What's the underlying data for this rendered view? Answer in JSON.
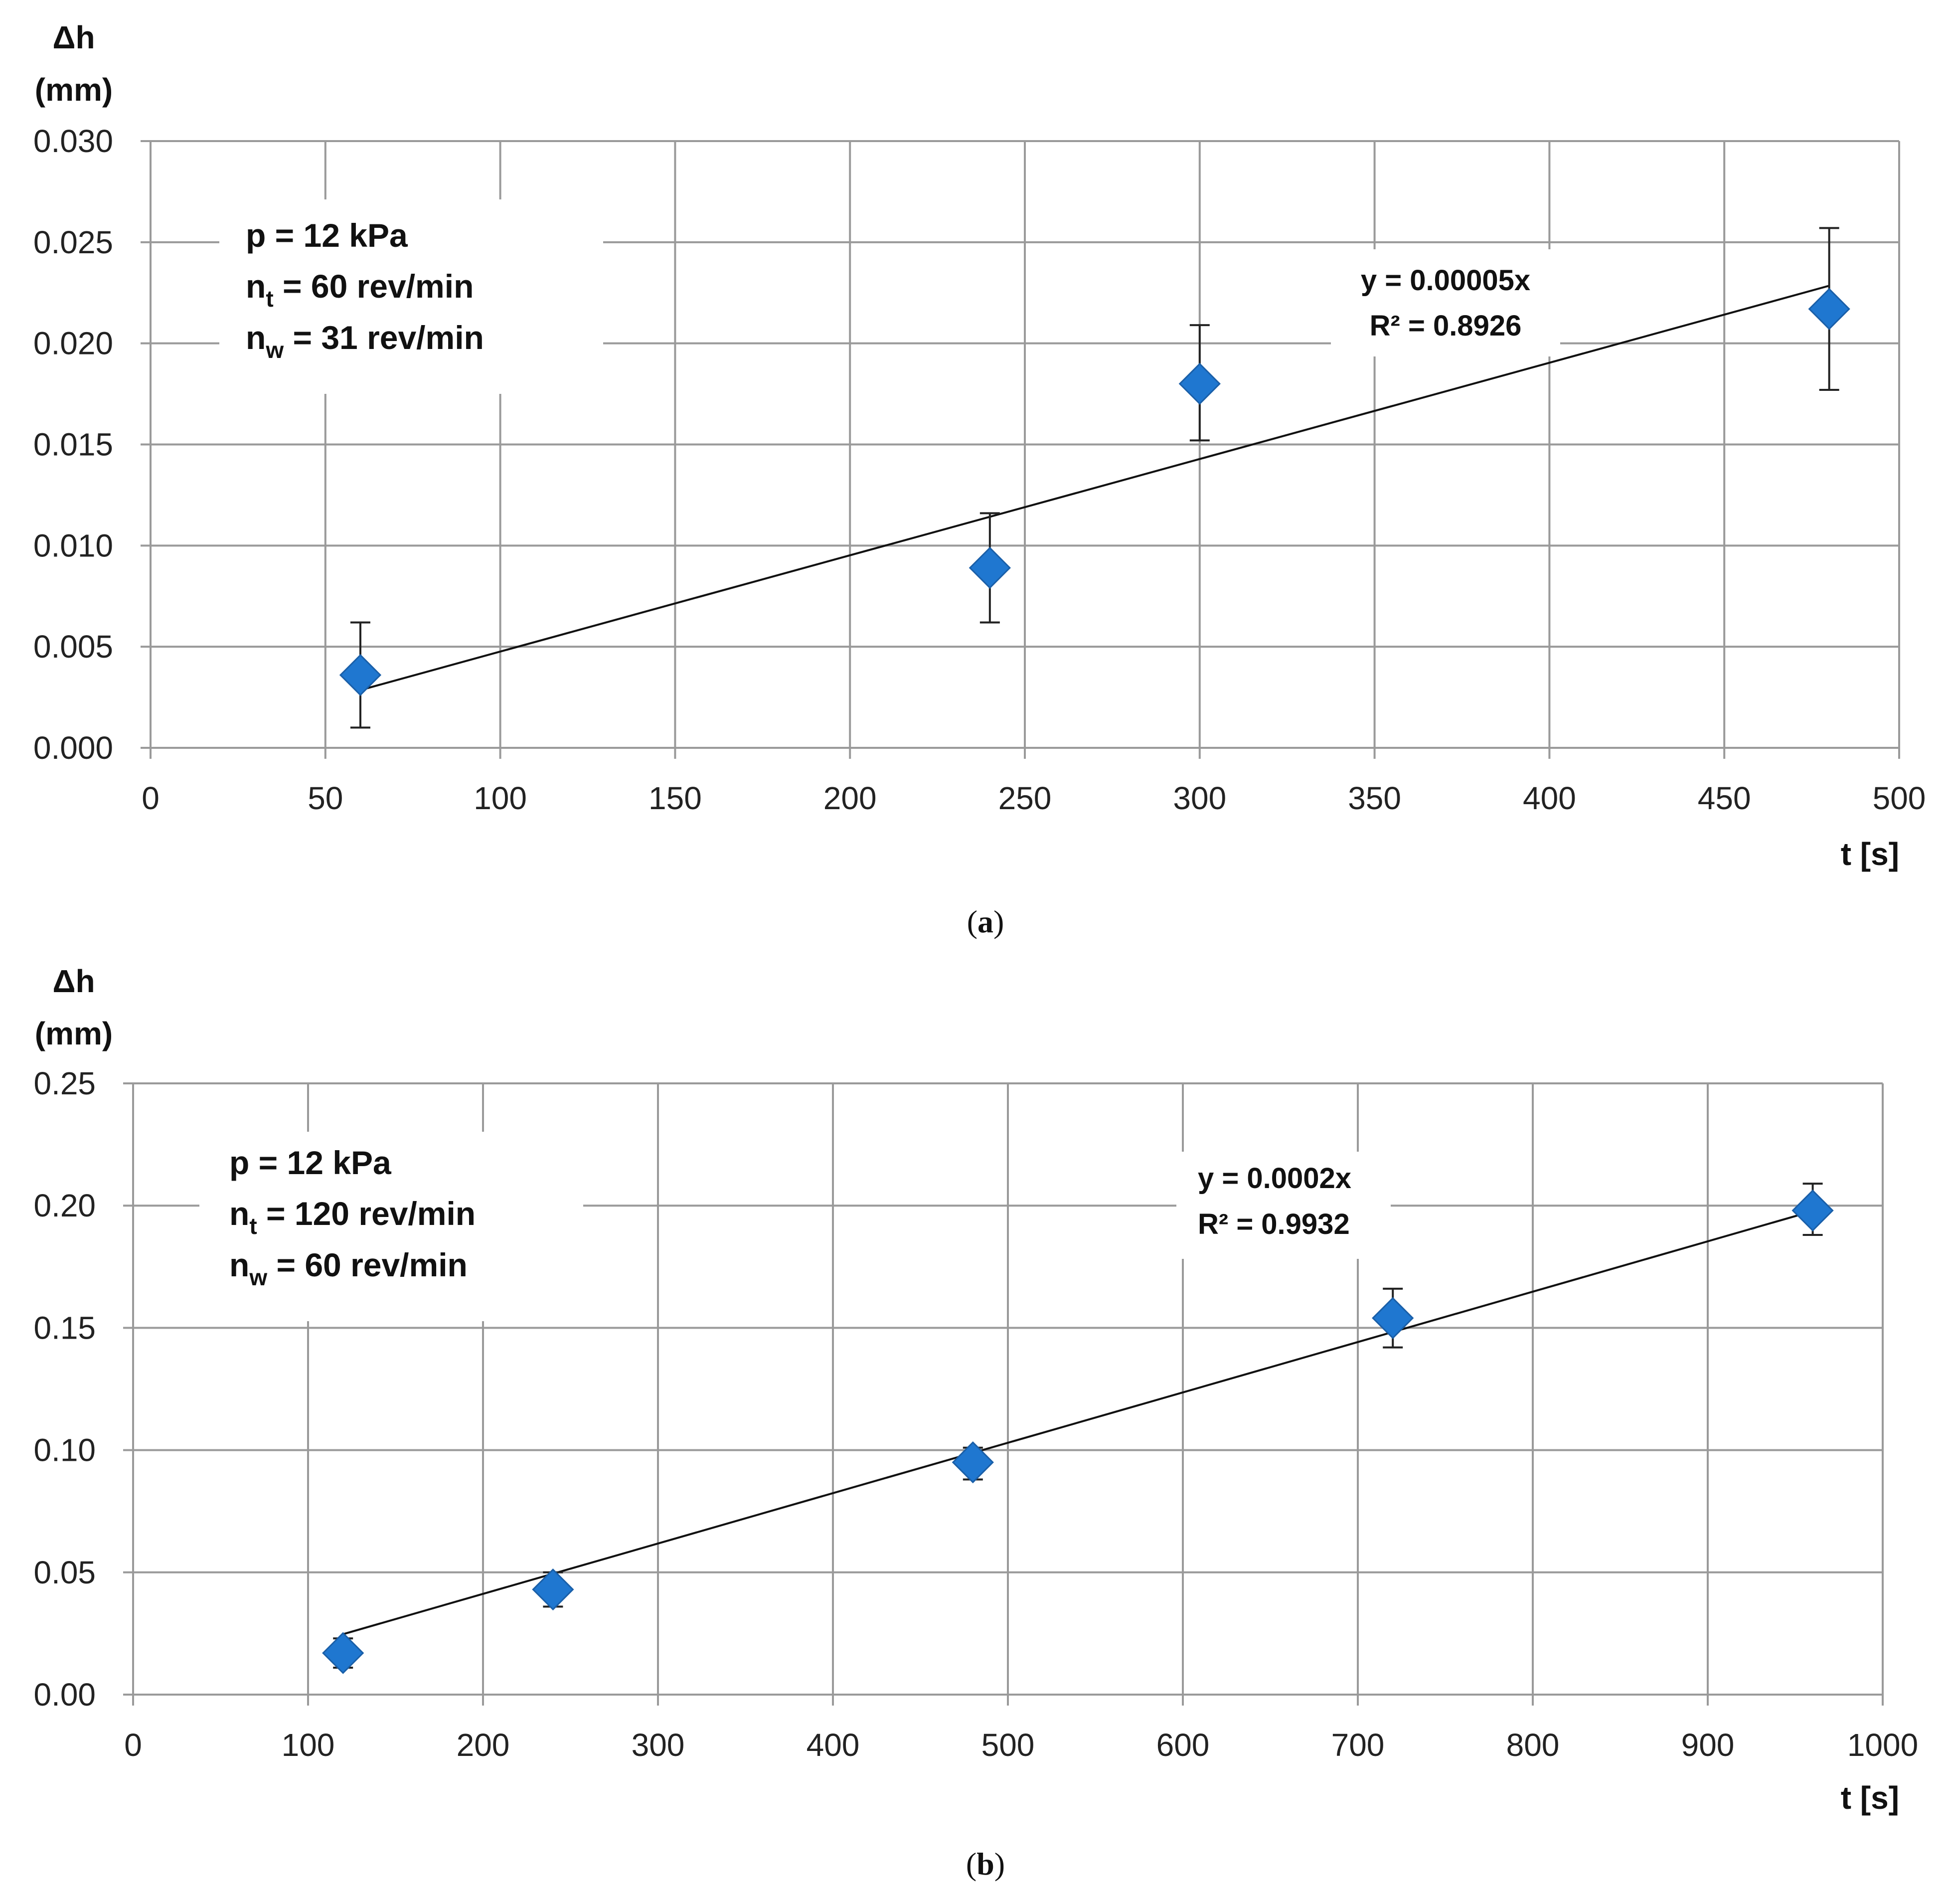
{
  "chart_data": [
    {
      "id": "a",
      "type": "scatter",
      "caption_letter": "a",
      "ylabel_line1": "Δh",
      "ylabel_line2": "(mm)",
      "xlabel": "t [s]",
      "xlim": [
        0,
        500
      ],
      "ylim": [
        0,
        0.03
      ],
      "xticks": [
        "0",
        "50",
        "100",
        "150",
        "200",
        "250",
        "300",
        "350",
        "400",
        "450",
        "500"
      ],
      "yticks": [
        "0.000",
        "0.005",
        "0.010",
        "0.015",
        "0.020",
        "0.025",
        "0.030"
      ],
      "grid": true,
      "annotation": {
        "p": "p = 12 kPa",
        "nt_main": "n",
        "nt_sub": "t",
        "nt_rest": " = 60 rev/min",
        "nw_main": "n",
        "nw_sub": "w",
        "nw_rest": " = 31 rev/min"
      },
      "trendline": {
        "slope": 4.76e-05,
        "x_range": [
          60,
          480
        ],
        "equation": "y = 0.00005x",
        "r2": "R² = 0.8926"
      },
      "series": [
        {
          "name": "Δh",
          "color": "#1f77d0",
          "x": [
            60,
            240,
            300,
            480
          ],
          "y": [
            0.0036,
            0.0089,
            0.018,
            0.0217
          ],
          "err_low": [
            0.001,
            0.0062,
            0.0152,
            0.0177
          ],
          "err_high": [
            0.0062,
            0.0116,
            0.0209,
            0.0257
          ]
        }
      ]
    },
    {
      "id": "b",
      "type": "scatter",
      "caption_letter": "b",
      "ylabel_line1": "Δh",
      "ylabel_line2": "(mm)",
      "xlabel": "t [s]",
      "xlim": [
        0,
        1000
      ],
      "ylim": [
        0,
        0.25
      ],
      "xticks": [
        "0",
        "100",
        "200",
        "300",
        "400",
        "500",
        "600",
        "700",
        "800",
        "900",
        "1000"
      ],
      "yticks": [
        "0.00",
        "0.05",
        "0.10",
        "0.15",
        "0.20",
        "0.25"
      ],
      "grid": true,
      "annotation": {
        "p": "p = 12 kPa",
        "nt_main": "n",
        "nt_sub": "t",
        "nt_rest": " = 120 rev/min",
        "nw_main": "n",
        "nw_sub": "w",
        "nw_rest": " = 60 rev/min"
      },
      "trendline": {
        "slope": 0.000206,
        "x_range": [
          120,
          960
        ],
        "equation": "y = 0.0002x",
        "r2": "R² = 0.9932"
      },
      "series": [
        {
          "name": "Δh",
          "color": "#1f77d0",
          "x": [
            120,
            240,
            480,
            720,
            960
          ],
          "y": [
            0.017,
            0.043,
            0.095,
            0.154,
            0.198
          ],
          "err_low": [
            0.011,
            0.036,
            0.088,
            0.142,
            0.188
          ],
          "err_high": [
            0.023,
            0.05,
            0.101,
            0.166,
            0.209
          ]
        }
      ]
    }
  ]
}
